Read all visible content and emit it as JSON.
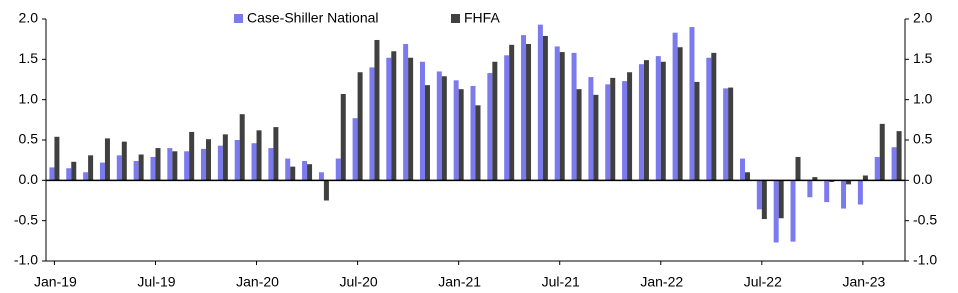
{
  "chart_data": {
    "type": "bar",
    "categories": [
      "Jan-19",
      null,
      null,
      null,
      null,
      null,
      "Jul-19",
      null,
      null,
      null,
      null,
      null,
      "Jan-20",
      null,
      null,
      null,
      null,
      null,
      "Jul-20",
      null,
      null,
      null,
      null,
      null,
      "Jan-21",
      null,
      null,
      null,
      null,
      null,
      "Jul-21",
      null,
      null,
      null,
      null,
      null,
      "Jan-22",
      null,
      null,
      null,
      null,
      null,
      "Jul-22",
      null,
      null,
      null,
      null,
      null,
      "Jan-23",
      null,
      null
    ],
    "series": [
      {
        "name": "Case-Shiller National",
        "color": "#7b7bef",
        "values": [
          0.16,
          0.15,
          0.1,
          0.22,
          0.31,
          0.24,
          0.29,
          0.4,
          0.36,
          0.39,
          0.43,
          0.5,
          0.46,
          0.4,
          0.27,
          0.24,
          0.1,
          0.27,
          0.77,
          1.4,
          1.52,
          1.69,
          1.47,
          1.35,
          1.24,
          1.17,
          1.33,
          1.55,
          1.8,
          1.93,
          1.66,
          1.58,
          1.28,
          1.19,
          1.23,
          1.44,
          1.54,
          1.83,
          1.9,
          1.52,
          1.14,
          0.27,
          -0.36,
          -0.77,
          -0.76,
          -0.21,
          -0.27,
          -0.35,
          -0.3,
          0.29,
          0.41
        ]
      },
      {
        "name": "FHFA",
        "color": "#404040",
        "values": [
          0.54,
          0.23,
          0.31,
          0.52,
          0.48,
          0.32,
          0.4,
          0.36,
          0.6,
          0.51,
          0.57,
          0.82,
          0.62,
          0.66,
          0.17,
          0.2,
          -0.25,
          1.07,
          1.34,
          1.74,
          1.6,
          1.52,
          1.18,
          1.29,
          1.13,
          0.93,
          1.47,
          1.68,
          1.69,
          1.79,
          1.59,
          1.13,
          1.06,
          1.27,
          1.34,
          1.49,
          1.47,
          1.65,
          1.22,
          1.58,
          1.15,
          0.1,
          -0.48,
          -0.47,
          0.29,
          0.04,
          -0.02,
          -0.05,
          0.06,
          0.7,
          0.61
        ]
      }
    ],
    "ylim": [
      -1,
      2
    ],
    "yticks": [
      {
        "value": 2,
        "label": "2.0"
      },
      {
        "value": 1.5,
        "label": "1.5"
      },
      {
        "value": 1,
        "label": "1.0"
      },
      {
        "value": 0.5,
        "label": "0.5"
      },
      {
        "value": 0,
        "label": "0.0"
      },
      {
        "value": -0.5,
        "label": "-0.5"
      },
      {
        "value": -1,
        "label": "-1.0"
      }
    ],
    "y2lim": [
      -1,
      2
    ],
    "y2ticks": [
      {
        "value": 2,
        "label": "2.0"
      },
      {
        "value": 1.5,
        "label": "1.5"
      },
      {
        "value": 1,
        "label": "1.0"
      },
      {
        "value": 0.5,
        "label": "0.5"
      },
      {
        "value": 0,
        "label": "0.0"
      },
      {
        "value": -0.5,
        "label": "-0.5"
      },
      {
        "value": -1,
        "label": "-1.0"
      }
    ],
    "legend": "top",
    "grid": false
  }
}
